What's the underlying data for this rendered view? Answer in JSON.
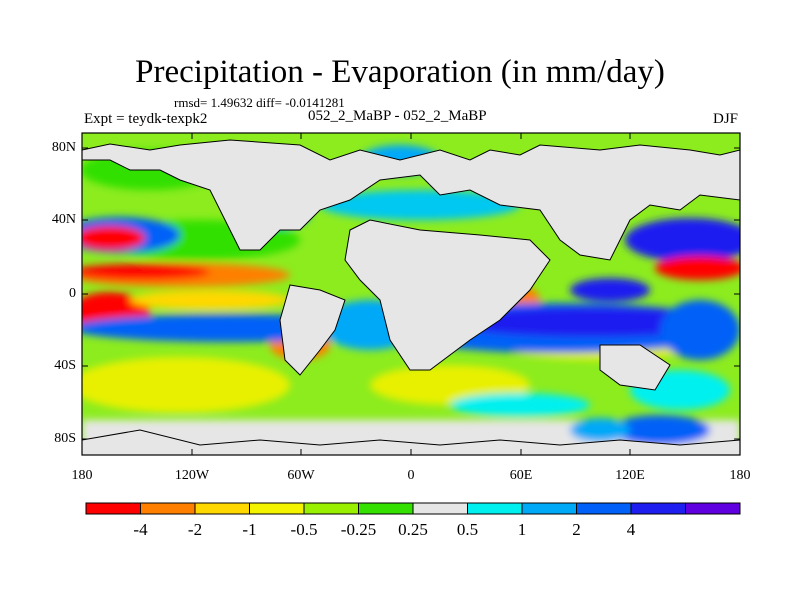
{
  "title": "Precipitation - Evaporation (in mm/day)",
  "stats": "rmsd= 1.49632 diff= -0.0141281",
  "experiment": "Expt = teydk-texpk2",
  "dataset": "052_2_MaBP - 052_2_MaBP",
  "season": "DJF",
  "lat_labels": [
    "80N",
    "40N",
    "0",
    "40S",
    "80S"
  ],
  "lon_labels": [
    "180",
    "120W",
    "60W",
    "0",
    "60E",
    "120E",
    "180"
  ],
  "colorbar": {
    "colors": [
      "#ff0000",
      "#ff7f00",
      "#ffd800",
      "#f4f400",
      "#99f000",
      "#33e000",
      "#e6e6e6",
      "#00f0f0",
      "#00a8f8",
      "#0060f8",
      "#1e1ef0",
      "#6000e0"
    ],
    "labels": [
      "-4",
      "-2",
      "-1",
      "-0.5",
      "-0.25",
      "0.25",
      "0.5",
      "1",
      "2",
      "4"
    ]
  }
}
